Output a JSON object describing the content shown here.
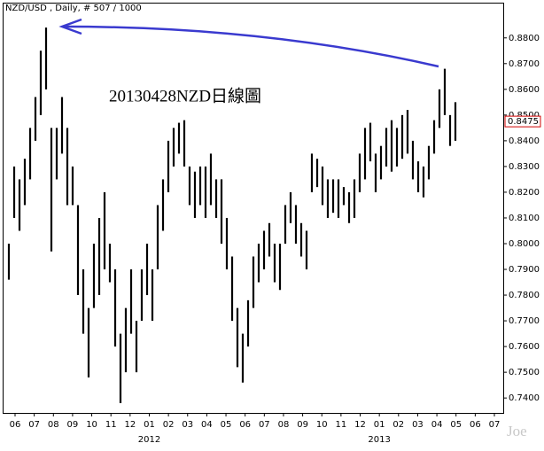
{
  "chart_data": {
    "type": "range-bar",
    "title": "NZD/USD , Daily, # 507 / 1000",
    "annotation": "20130428NZD日線圖",
    "watermark": "Joe",
    "color": "#000000",
    "categories": [
      "06",
      "07",
      "08",
      "09",
      "10",
      "11",
      "12",
      "01",
      "02",
      "03",
      "04",
      "05",
      "06",
      "07",
      "08",
      "09",
      "10",
      "11",
      "12",
      "01",
      "02",
      "03",
      "04",
      "05",
      "06",
      "07"
    ],
    "year_labels": [
      "2012",
      "2013"
    ],
    "low": [
      0.786,
      0.81,
      0.805,
      0.815,
      0.825,
      0.84,
      0.85,
      0.86,
      0.797,
      0.825,
      0.835,
      0.815,
      0.815,
      0.78,
      0.765,
      0.748,
      0.775,
      0.78,
      0.79,
      0.785,
      0.76,
      0.738,
      0.75,
      0.765,
      0.75,
      0.77,
      0.78,
      0.77,
      0.79,
      0.805,
      0.82,
      0.83,
      0.835,
      0.83,
      0.815,
      0.81,
      0.815,
      0.81,
      0.815,
      0.81,
      0.8,
      0.79,
      0.77,
      0.752,
      0.746,
      0.76,
      0.775,
      0.785,
      0.79,
      0.795,
      0.785,
      0.782,
      0.8,
      0.808,
      0.8,
      0.795,
      0.79,
      0.82,
      0.822,
      0.815,
      0.81,
      0.812,
      0.81,
      0.815,
      0.808,
      0.81,
      0.82,
      0.825,
      0.832,
      0.82,
      0.825,
      0.83,
      0.828,
      0.83,
      0.833,
      0.835,
      0.825,
      0.82,
      0.818,
      0.825,
      0.835,
      0.845,
      0.85,
      0.838,
      0.84
    ],
    "high": [
      0.8,
      0.83,
      0.825,
      0.833,
      0.845,
      0.857,
      0.875,
      0.884,
      0.845,
      0.845,
      0.857,
      0.845,
      0.83,
      0.815,
      0.79,
      0.775,
      0.8,
      0.81,
      0.82,
      0.8,
      0.79,
      0.765,
      0.775,
      0.79,
      0.77,
      0.79,
      0.8,
      0.79,
      0.815,
      0.825,
      0.84,
      0.845,
      0.847,
      0.848,
      0.83,
      0.828,
      0.83,
      0.83,
      0.835,
      0.825,
      0.825,
      0.81,
      0.795,
      0.775,
      0.765,
      0.778,
      0.795,
      0.8,
      0.805,
      0.808,
      0.8,
      0.8,
      0.815,
      0.82,
      0.815,
      0.808,
      0.805,
      0.835,
      0.833,
      0.83,
      0.825,
      0.825,
      0.825,
      0.822,
      0.82,
      0.825,
      0.835,
      0.845,
      0.847,
      0.835,
      0.838,
      0.845,
      0.848,
      0.845,
      0.85,
      0.852,
      0.84,
      0.832,
      0.83,
      0.838,
      0.848,
      0.86,
      0.868,
      0.85,
      0.855
    ],
    "last_price": {
      "value": 0.8475,
      "label": "0.8475"
    },
    "ylim": [
      0.7342,
      0.8937
    ],
    "yticks": [
      {
        "value": 0.74,
        "label": "0.7400"
      },
      {
        "value": 0.75,
        "label": "0.7500"
      },
      {
        "value": 0.76,
        "label": "0.7600"
      },
      {
        "value": 0.77,
        "label": "0.7700"
      },
      {
        "value": 0.78,
        "label": "0.7800"
      },
      {
        "value": 0.79,
        "label": "0.7900"
      },
      {
        "value": 0.8,
        "label": "0.8000"
      },
      {
        "value": 0.81,
        "label": "0.8100"
      },
      {
        "value": 0.82,
        "label": "0.8200"
      },
      {
        "value": 0.83,
        "label": "0.8300"
      },
      {
        "value": 0.84,
        "label": "0.8400"
      },
      {
        "value": 0.85,
        "label": "0.8500"
      },
      {
        "value": 0.86,
        "label": "0.8600"
      },
      {
        "value": 0.87,
        "label": "0.8700"
      },
      {
        "value": 0.88,
        "label": "0.8800"
      }
    ]
  }
}
